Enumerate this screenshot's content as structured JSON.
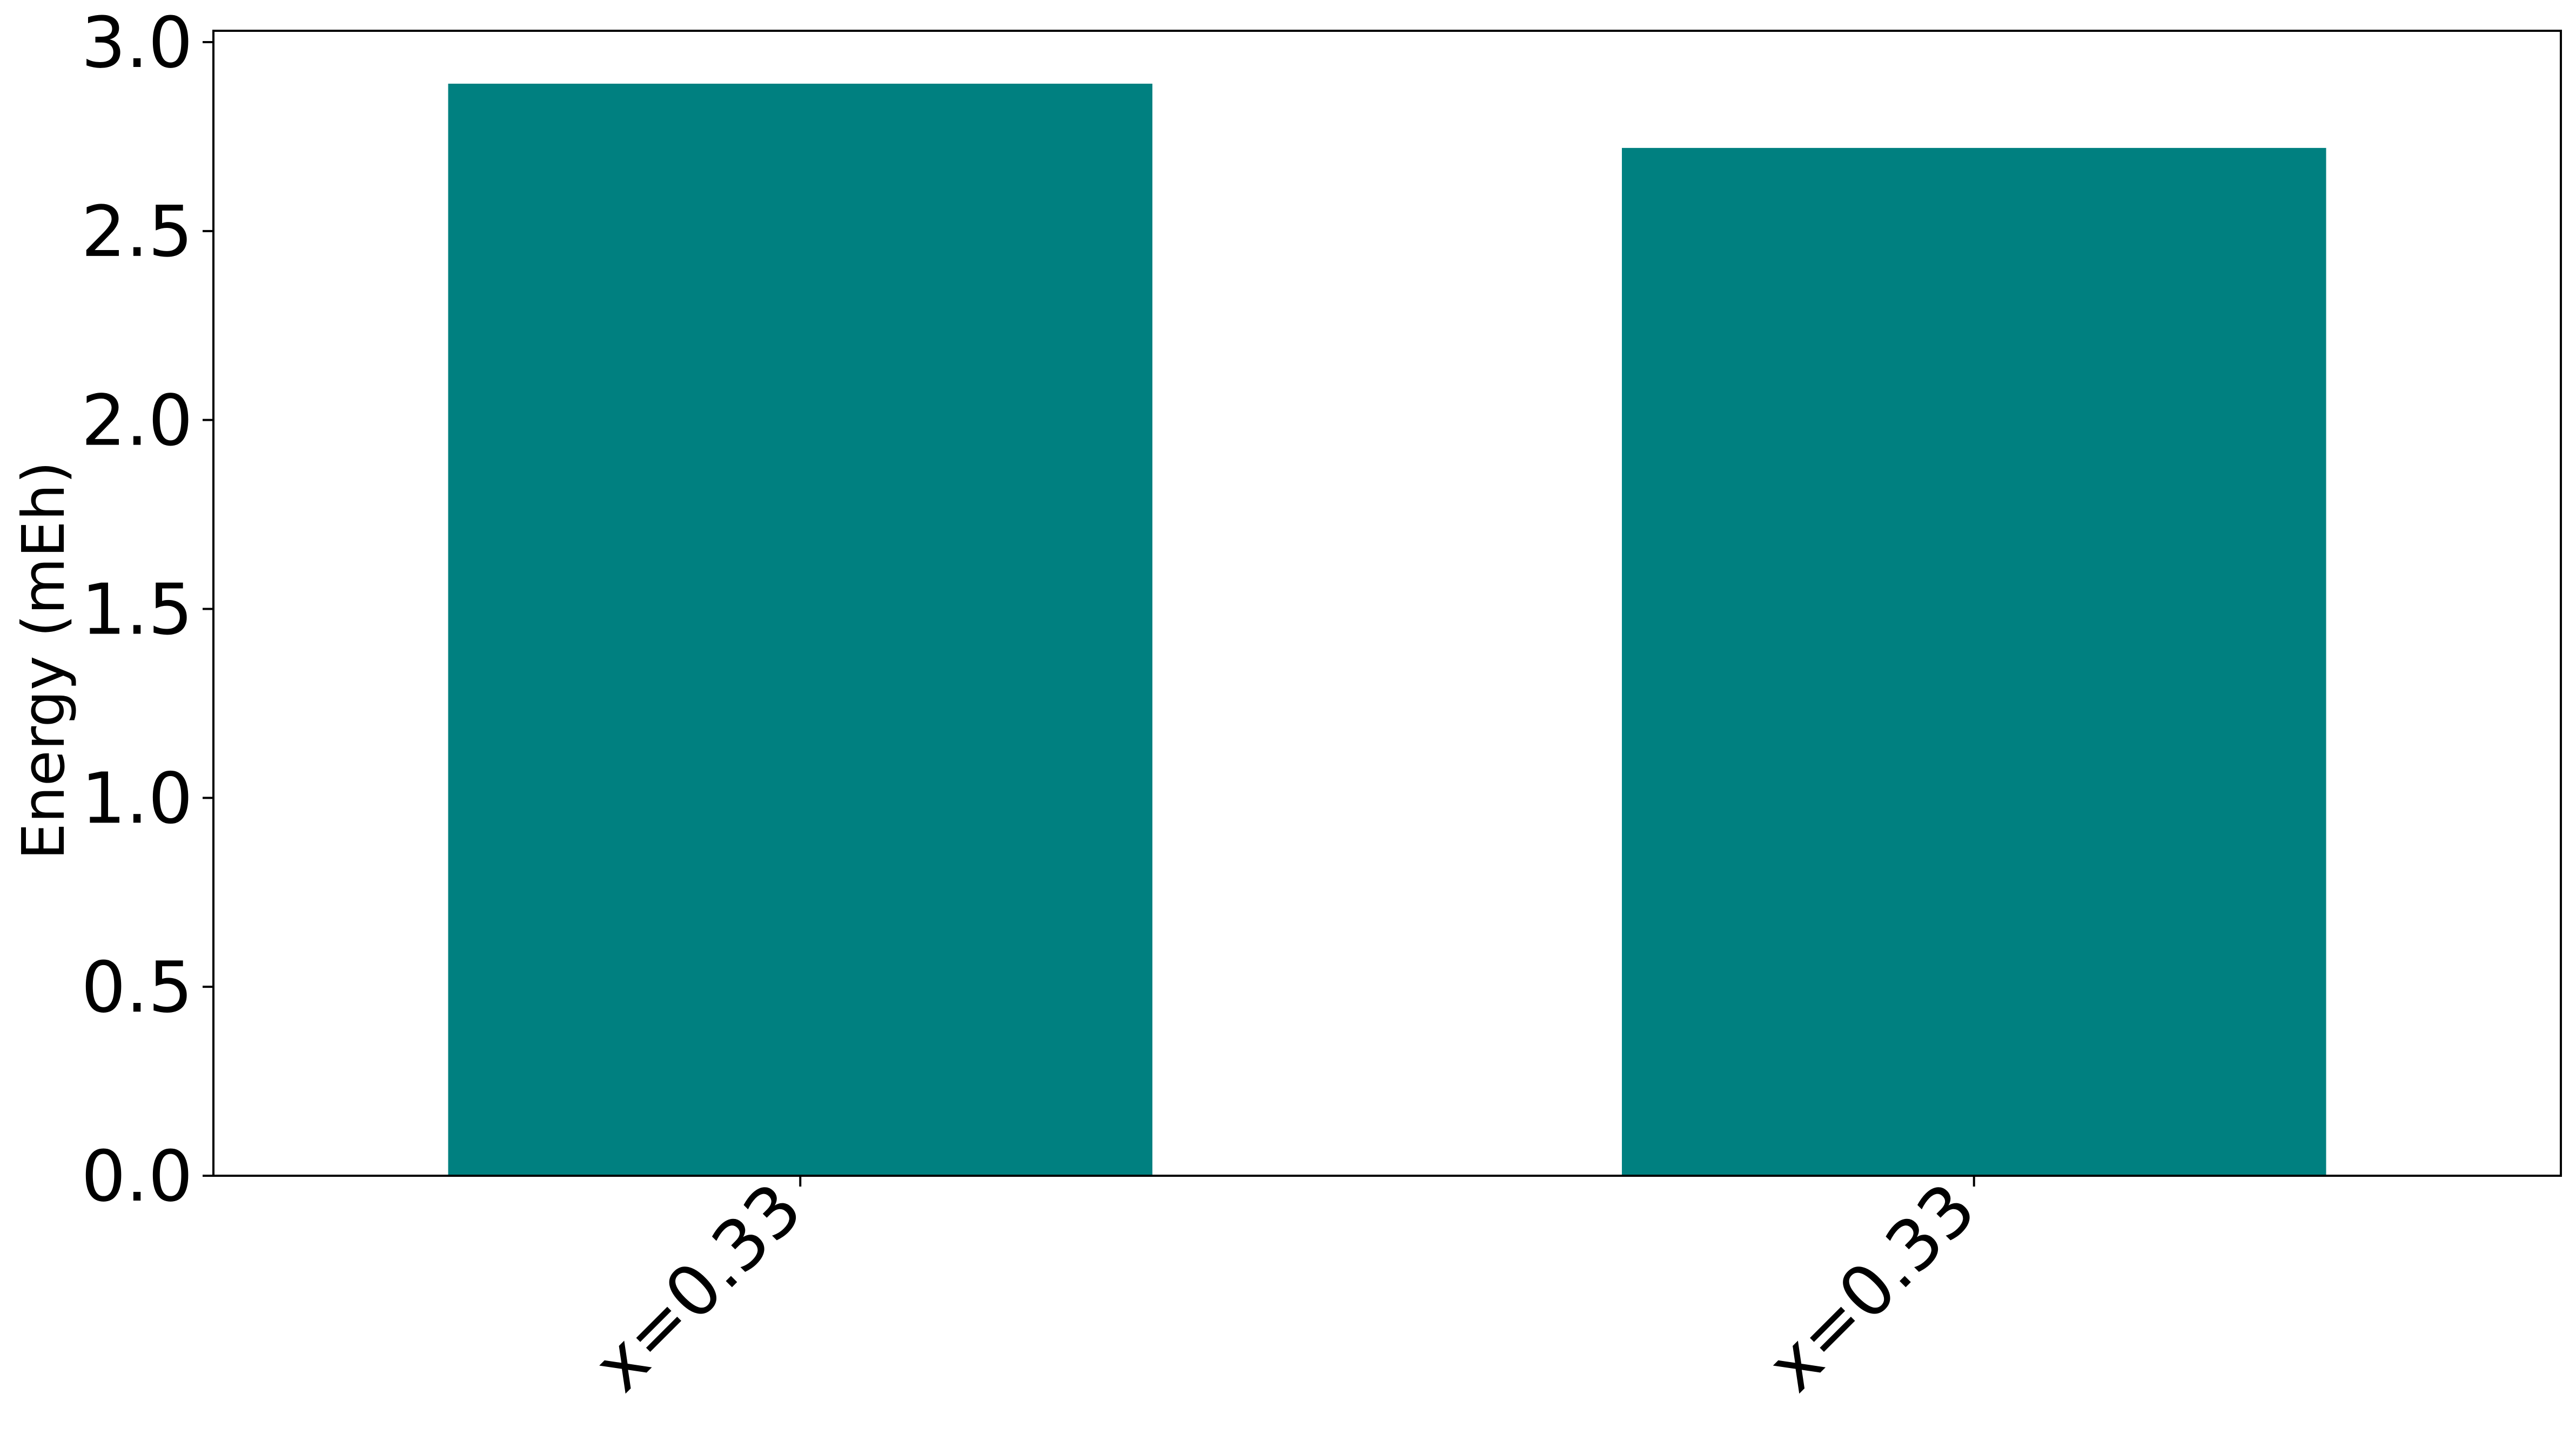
{
  "chart_data": {
    "type": "bar",
    "categories": [
      "x=0.33",
      "x=0.33"
    ],
    "values": [
      2.89,
      2.72
    ],
    "ylabel": "Energy (mEh)",
    "xlabel": "",
    "title": "",
    "ylim": [
      0,
      3.03
    ],
    "yticks": [
      "0.0",
      "0.5",
      "1.0",
      "1.5",
      "2.0",
      "2.5",
      "3.0"
    ],
    "grid": false,
    "bar_color": "#008080"
  }
}
